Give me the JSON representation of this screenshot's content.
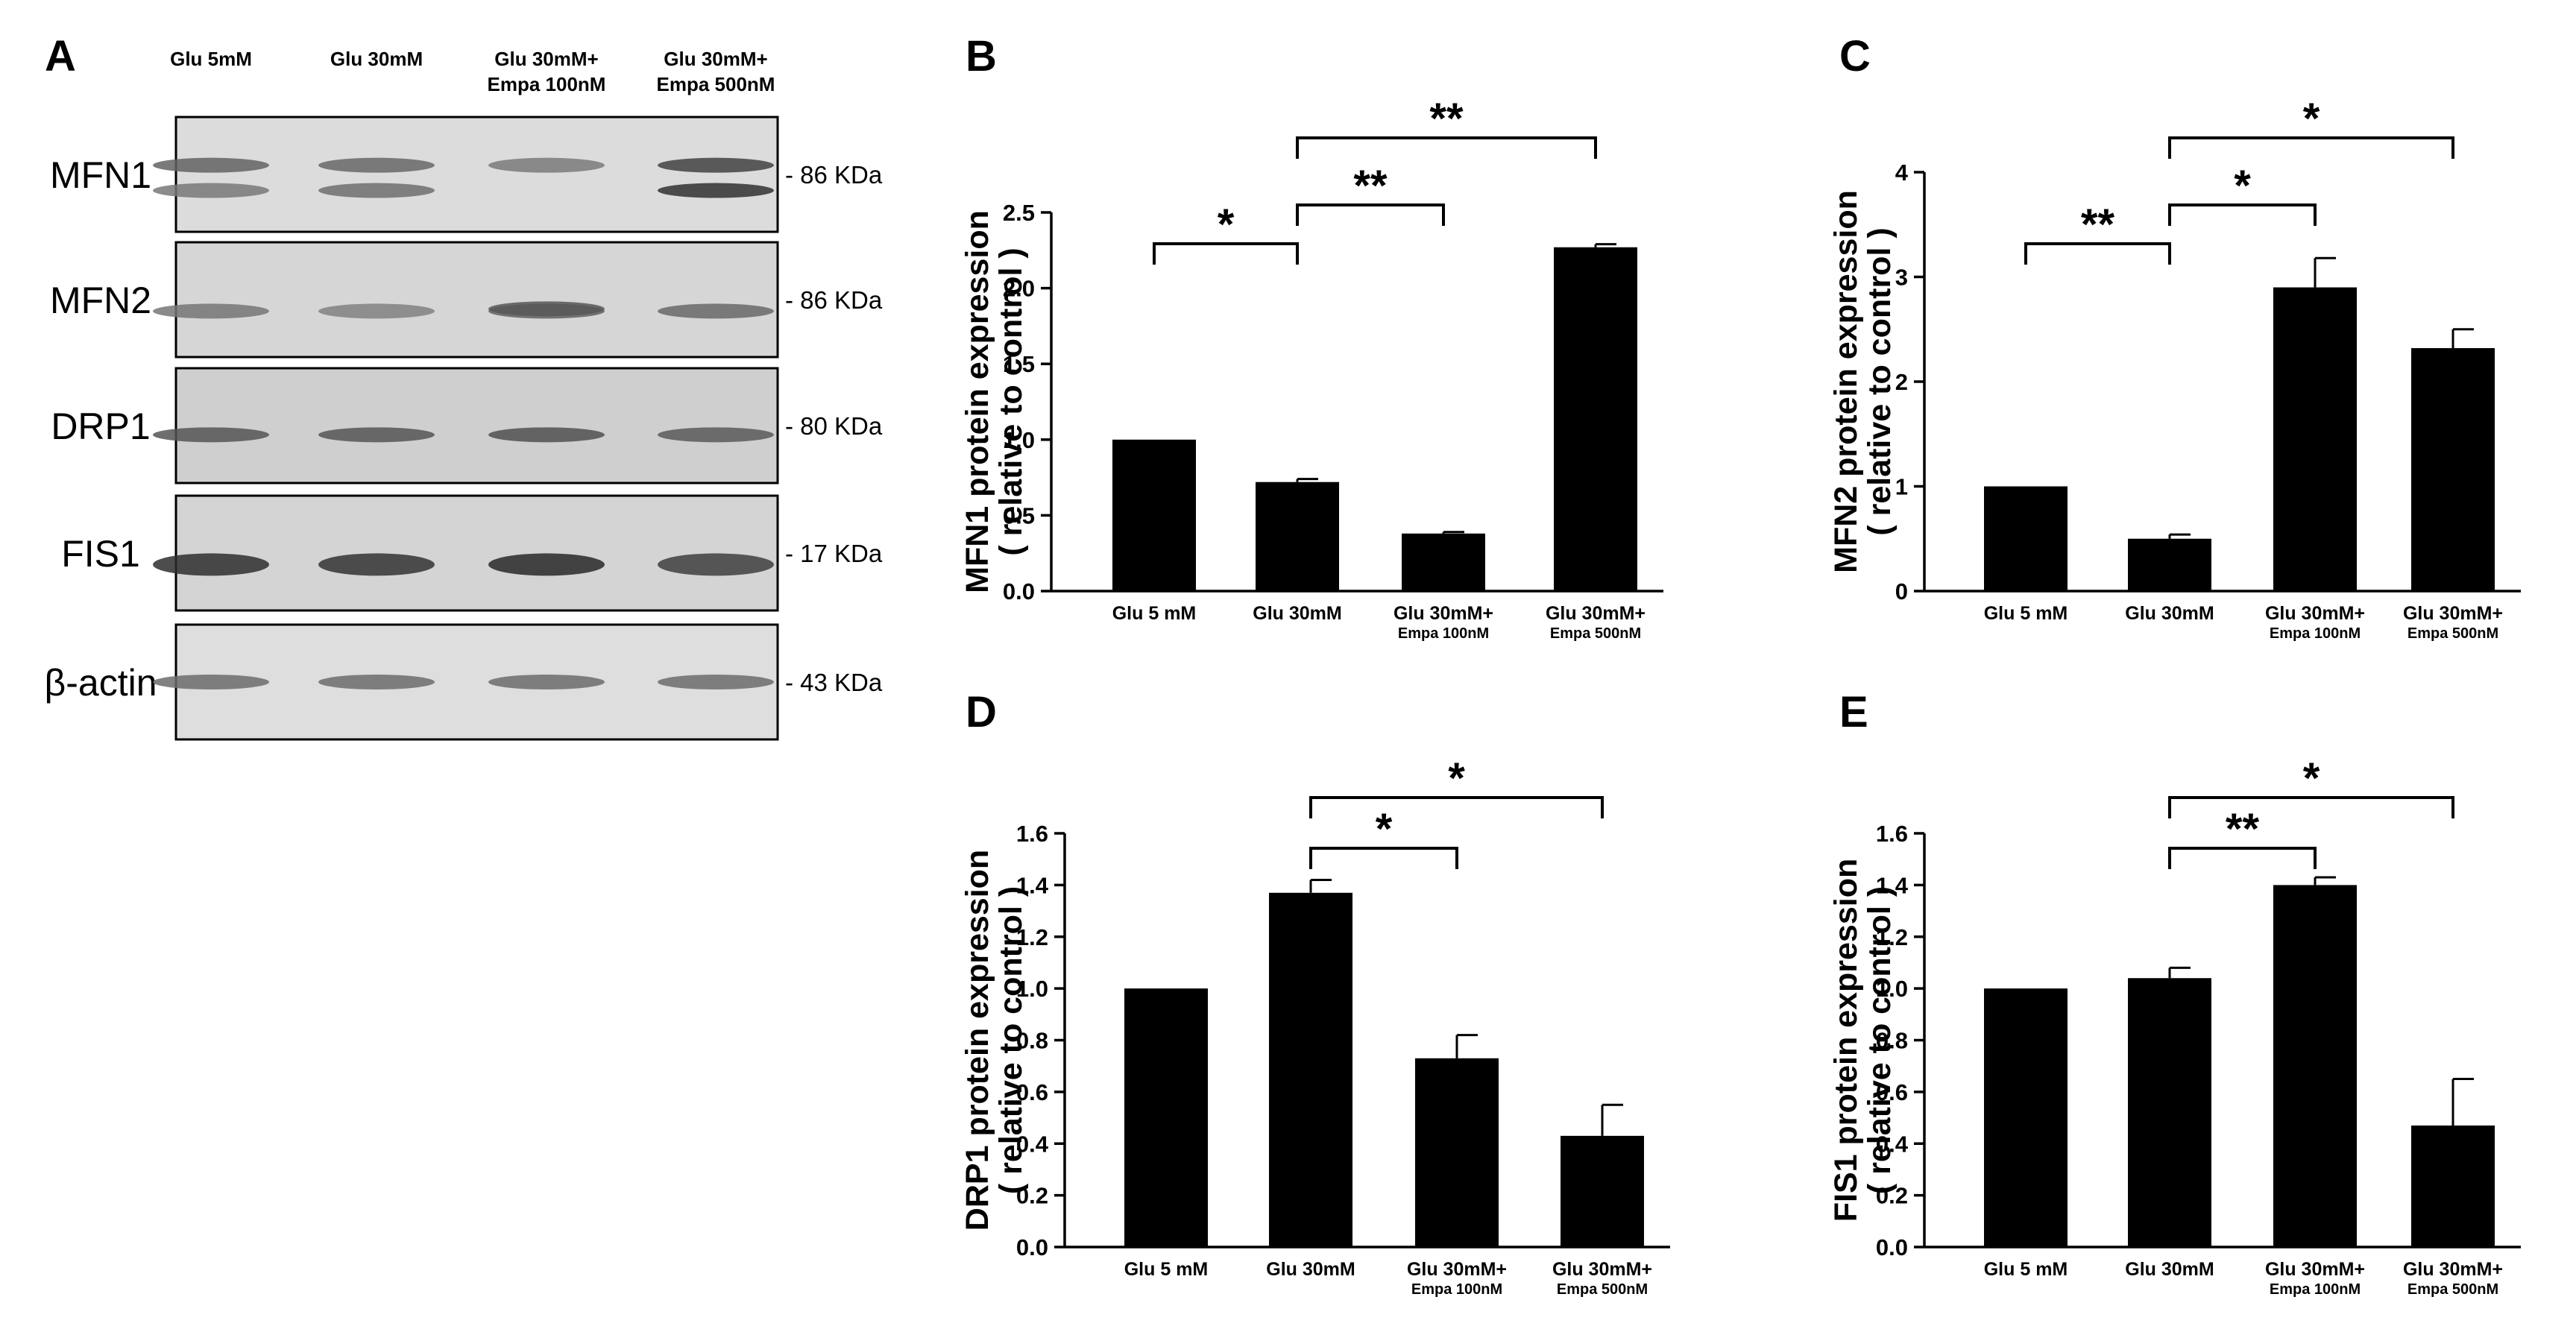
{
  "blot": {
    "panel_label": "A",
    "columns": [
      "Glu 5mM",
      "Glu 30mM",
      [
        "Glu 30mM+",
        "Empa 100nM"
      ],
      [
        "Glu 30mM+",
        "Empa 500nM"
      ]
    ],
    "rows": [
      {
        "protein": "MFN1",
        "mw": "- 86 KDa"
      },
      {
        "protein": "MFN2",
        "mw": "- 86 KDa"
      },
      {
        "protein": "DRP1",
        "mw": "- 80 KDa"
      },
      {
        "protein": "FIS1",
        "mw": "- 17 KDa"
      },
      {
        "protein": "β-actin",
        "mw": "- 43 KDa"
      }
    ]
  },
  "chart_data": [
    {
      "type": "bar",
      "panel_label": "B",
      "categories": [
        [
          "Glu 5 mM"
        ],
        [
          "Glu 30mM"
        ],
        [
          "Glu 30mM+",
          "Empa 100nM"
        ],
        [
          "Glu 30mM+",
          "Empa 500nM"
        ]
      ],
      "values": [
        1.0,
        0.72,
        0.38,
        2.27
      ],
      "errors": [
        0.0,
        0.02,
        0.01,
        0.02
      ],
      "ylabel": [
        "MFN1 protein expression",
        "( relative to control )"
      ],
      "ylim": [
        0,
        2.5
      ],
      "yticks": [
        "0.0",
        "0.5",
        "1.0",
        "1.5",
        "2.0",
        "2.5"
      ],
      "significance": [
        {
          "from": 0,
          "to": 1,
          "label": "*"
        },
        {
          "from": 1,
          "to": 2,
          "label": "**"
        },
        {
          "from": 1,
          "to": 3,
          "label": "**"
        }
      ]
    },
    {
      "type": "bar",
      "panel_label": "C",
      "categories": [
        [
          "Glu 5 mM"
        ],
        [
          "Glu 30mM"
        ],
        [
          "Glu 30mM+",
          "Empa 100nM"
        ],
        [
          "Glu 30mM+",
          "Empa 500nM"
        ]
      ],
      "values": [
        1.0,
        0.5,
        2.9,
        2.32
      ],
      "errors": [
        0.0,
        0.04,
        0.28,
        0.18
      ],
      "ylabel": [
        "MFN2 protein expression",
        "( relative to control )"
      ],
      "ylim": [
        0,
        4
      ],
      "yticks": [
        "0",
        "1",
        "2",
        "3",
        "4"
      ],
      "significance": [
        {
          "from": 0,
          "to": 1,
          "label": "**"
        },
        {
          "from": 1,
          "to": 2,
          "label": "*"
        },
        {
          "from": 1,
          "to": 3,
          "label": "*"
        }
      ]
    },
    {
      "type": "bar",
      "panel_label": "D",
      "categories": [
        [
          "Glu 5 mM"
        ],
        [
          "Glu 30mM"
        ],
        [
          "Glu 30mM+",
          "Empa 100nM"
        ],
        [
          "Glu 30mM+",
          "Empa 500nM"
        ]
      ],
      "values": [
        1.0,
        1.37,
        0.73,
        0.43
      ],
      "errors": [
        0.0,
        0.05,
        0.09,
        0.12
      ],
      "ylabel": [
        "DRP1 protein expression",
        "( relative to control )"
      ],
      "ylim": [
        0,
        1.6
      ],
      "yticks": [
        "0.0",
        "0.2",
        "0.4",
        "0.6",
        "0.8",
        "1.0",
        "1.2",
        "1.4",
        "1.6"
      ],
      "significance": [
        {
          "from": 1,
          "to": 2,
          "label": "*"
        },
        {
          "from": 1,
          "to": 3,
          "label": "*"
        }
      ]
    },
    {
      "type": "bar",
      "panel_label": "E",
      "categories": [
        [
          "Glu 5 mM"
        ],
        [
          "Glu 30mM"
        ],
        [
          "Glu 30mM+",
          "Empa 100nM"
        ],
        [
          "Glu 30mM+",
          "Empa 500nM"
        ]
      ],
      "values": [
        1.0,
        1.04,
        1.4,
        0.47
      ],
      "errors": [
        0.0,
        0.04,
        0.03,
        0.18
      ],
      "ylabel": [
        "FIS1 protein expression",
        "( relative to control )"
      ],
      "ylim": [
        0,
        1.6
      ],
      "yticks": [
        "0.0",
        "0.2",
        "0.4",
        "0.6",
        "0.8",
        "1.0",
        "1.2",
        "1.4",
        "1.6"
      ],
      "significance": [
        {
          "from": 1,
          "to": 2,
          "label": "**"
        },
        {
          "from": 1,
          "to": 3,
          "label": "*"
        }
      ]
    }
  ]
}
